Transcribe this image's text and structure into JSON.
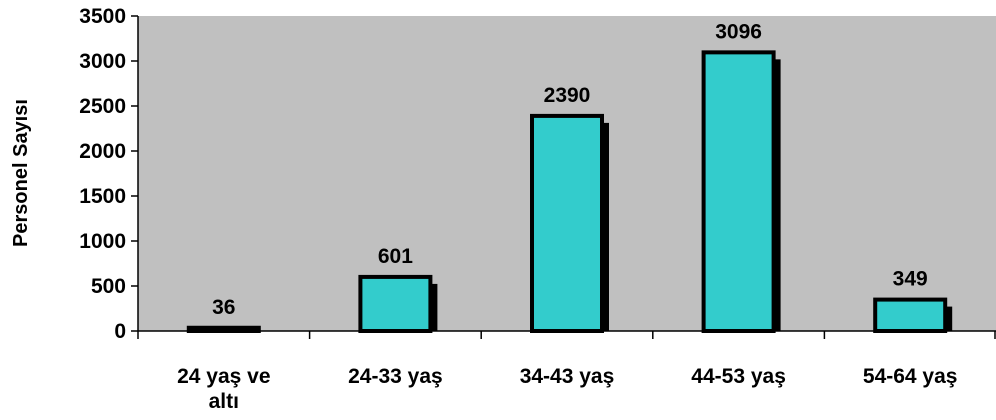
{
  "chart_data": {
    "type": "bar",
    "title": "",
    "xlabel": "",
    "ylabel": "Personel Sayısı",
    "categories": [
      [
        "24 yaş ve",
        "altı"
      ],
      [
        "24-33 yaş"
      ],
      [
        "34-43 yaş"
      ],
      [
        "44-53 yaş"
      ],
      [
        "54-64 yaş"
      ]
    ],
    "values": [
      36,
      601,
      2390,
      3096,
      349
    ],
    "ylim": [
      0,
      3500
    ],
    "yticks": [
      0,
      500,
      1000,
      1500,
      2000,
      2500,
      3000,
      3500
    ],
    "grid": false,
    "legend": "none",
    "colors": {
      "plot_background": "#c0c0c0",
      "bar_fill": "#33cccc",
      "bar_outline": "#000000",
      "bar_shadow": "#000000"
    }
  }
}
